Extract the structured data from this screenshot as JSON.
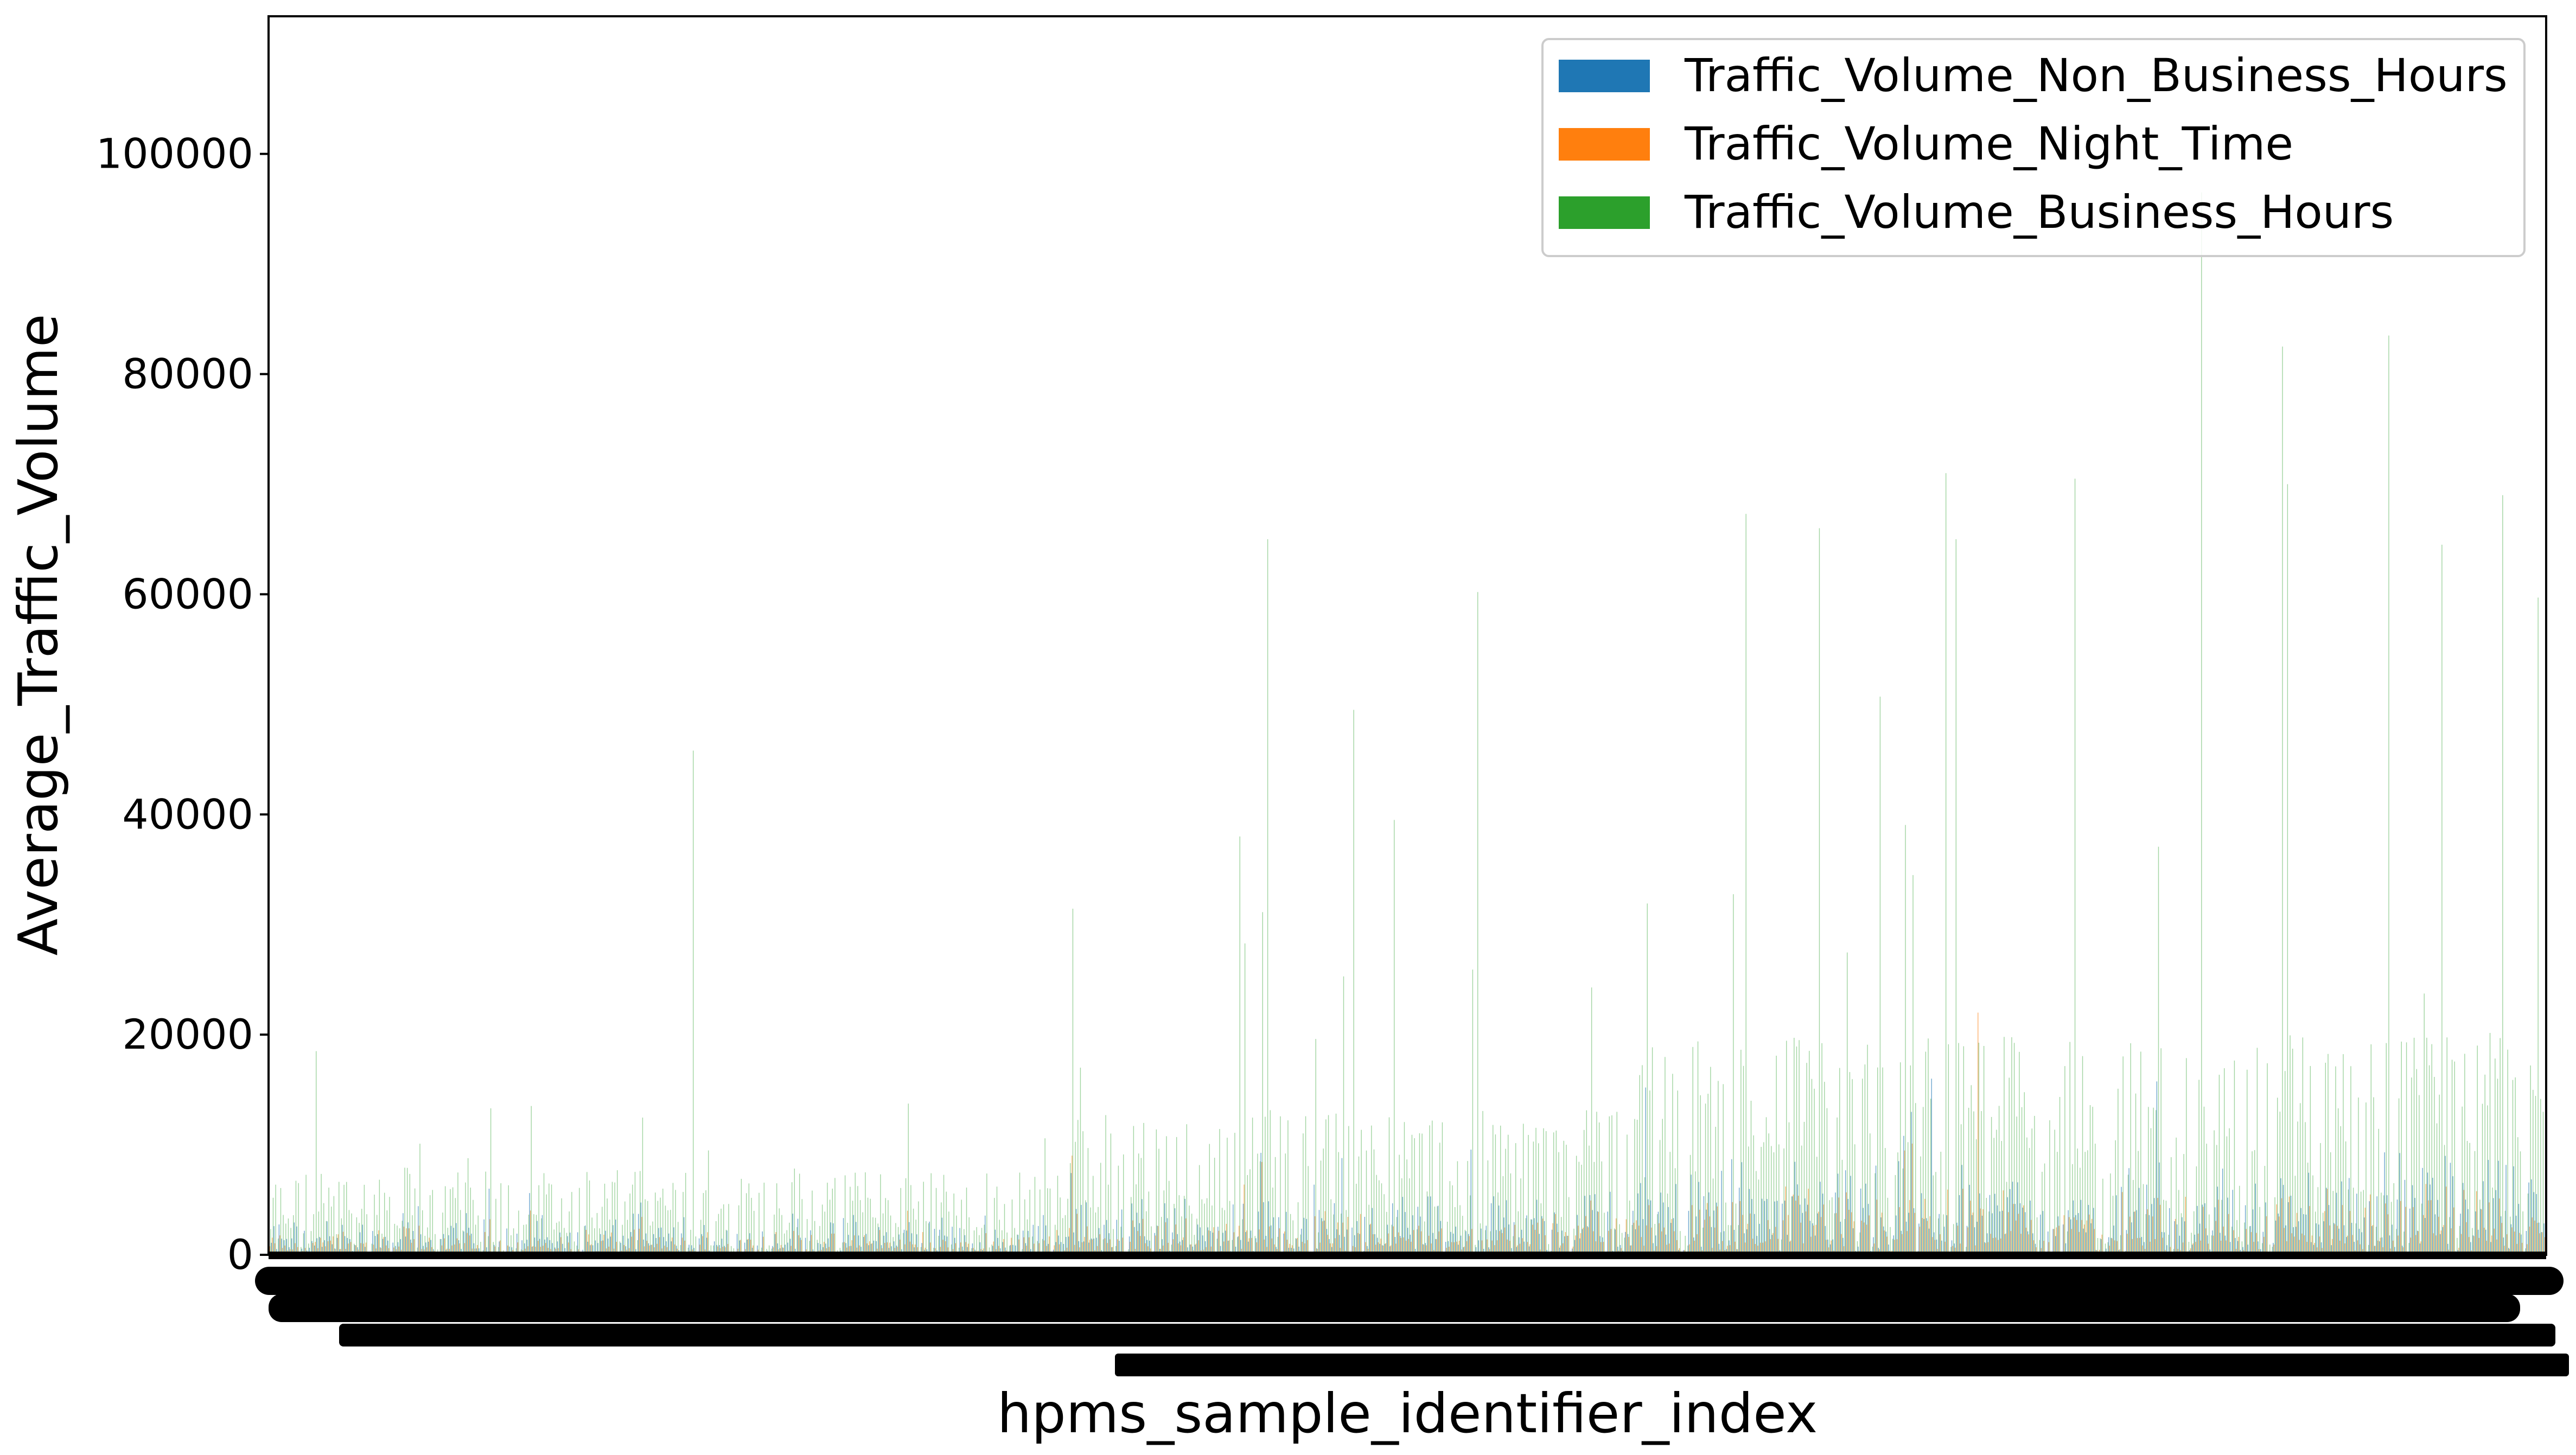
{
  "chart_data": {
    "type": "bar",
    "title": "",
    "xlabel": "hpms_sample_identifier_index",
    "ylabel": "Average_Traffic_Volume",
    "ylim": [
      0,
      112500
    ],
    "yticks": [
      0,
      20000,
      40000,
      60000,
      80000,
      100000
    ],
    "ytick_labels": [
      "0",
      "20000",
      "40000",
      "60000",
      "80000",
      "100000"
    ],
    "grid": false,
    "legend_position": "top-right",
    "series": [
      {
        "name": "Traffic_Volume_Non_Business_Hours",
        "color": "#1f77b4"
      },
      {
        "name": "Traffic_Volume_Night_Time",
        "color": "#ff7f0e"
      },
      {
        "name": "Traffic_Volume_Business_Hours",
        "color": "#2ca02c"
      }
    ],
    "notable_peaks": [
      {
        "x_fraction": 0.02,
        "series": "Traffic_Volume_Business_Hours",
        "value": 18500
      },
      {
        "x_fraction": 0.185,
        "series": "Traffic_Volume_Business_Hours",
        "value": 45800
      },
      {
        "x_fraction": 0.355,
        "series": "Traffic_Volume_Business_Hours",
        "value": 17000
      },
      {
        "x_fraction": 0.438,
        "series": "Traffic_Volume_Business_Hours",
        "value": 65000
      },
      {
        "x_fraction": 0.425,
        "series": "Traffic_Volume_Business_Hours",
        "value": 38000
      },
      {
        "x_fraction": 0.475,
        "series": "Traffic_Volume_Business_Hours",
        "value": 49500
      },
      {
        "x_fraction": 0.493,
        "series": "Traffic_Volume_Business_Hours",
        "value": 39500
      },
      {
        "x_fraction": 0.53,
        "series": "Traffic_Volume_Business_Hours",
        "value": 60200
      },
      {
        "x_fraction": 0.648,
        "series": "Traffic_Volume_Business_Hours",
        "value": 67300
      },
      {
        "x_fraction": 0.68,
        "series": "Traffic_Volume_Business_Hours",
        "value": 66000
      },
      {
        "x_fraction": 0.707,
        "series": "Traffic_Volume_Business_Hours",
        "value": 50700
      },
      {
        "x_fraction": 0.735,
        "series": "Traffic_Volume_Business_Hours",
        "value": 71000
      },
      {
        "x_fraction": 0.74,
        "series": "Traffic_Volume_Business_Hours",
        "value": 65000
      },
      {
        "x_fraction": 0.792,
        "series": "Traffic_Volume_Business_Hours",
        "value": 70500
      },
      {
        "x_fraction": 0.848,
        "series": "Traffic_Volume_Business_Hours",
        "value": 96500
      },
      {
        "x_fraction": 0.883,
        "series": "Traffic_Volume_Business_Hours",
        "value": 82500
      },
      {
        "x_fraction": 0.886,
        "series": "Traffic_Volume_Business_Hours",
        "value": 70000
      },
      {
        "x_fraction": 0.93,
        "series": "Traffic_Volume_Business_Hours",
        "value": 83500
      },
      {
        "x_fraction": 0.953,
        "series": "Traffic_Volume_Business_Hours",
        "value": 64500
      },
      {
        "x_fraction": 0.98,
        "series": "Traffic_Volume_Business_Hours",
        "value": 69000
      },
      {
        "x_fraction": 0.996,
        "series": "Traffic_Volume_Business_Hours",
        "value": 59700
      },
      {
        "x_fraction": 0.73,
        "series": "Traffic_Volume_Non_Business_Hours",
        "value": 16000
      },
      {
        "x_fraction": 0.75,
        "series": "Traffic_Volume_Night_Time",
        "value": 22000
      }
    ],
    "bar_count": 900,
    "x_tick_labels_note": "overlapping unreadable index labels"
  }
}
